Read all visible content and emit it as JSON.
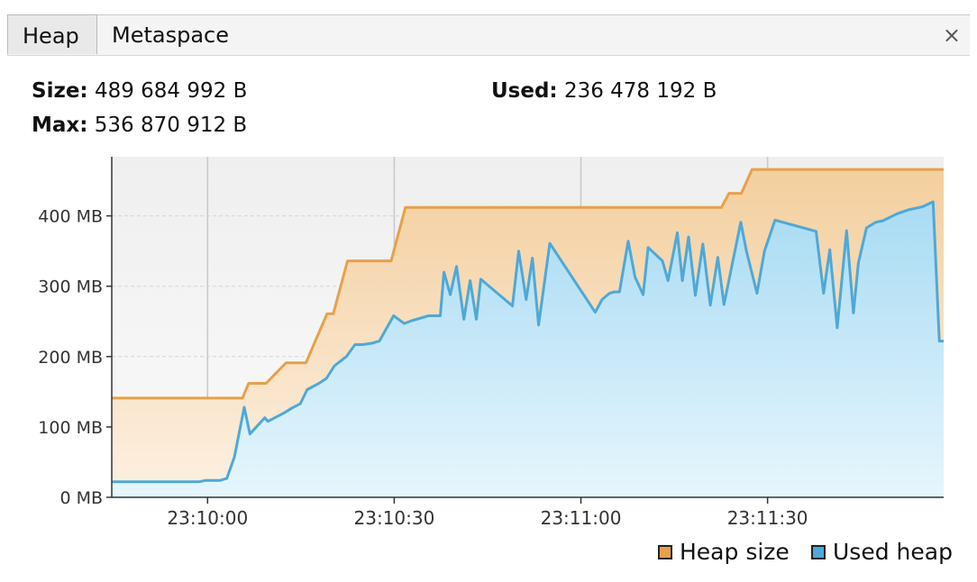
{
  "tabs": [
    {
      "label": "Heap",
      "active": true
    },
    {
      "label": "Metaspace",
      "active": false
    }
  ],
  "close_label": "×",
  "stats": {
    "size_label": "Size:",
    "size_value": "489 684 992 B",
    "used_label": "Used:",
    "used_value": "236 478 192 B",
    "max_label": "Max:",
    "max_value": "536 870 912 B"
  },
  "legend": {
    "heap_size": "Heap size",
    "used_heap": "Used heap"
  },
  "colors": {
    "heap_line": "#e8a04a",
    "used_line": "#4ea8d8"
  },
  "chart_data": {
    "type": "area",
    "x_tick_labels": [
      "23:10:00",
      "23:10:30",
      "23:11:00",
      "23:11:30"
    ],
    "x_ticks": [
      0,
      30,
      60,
      90
    ],
    "y_tick_labels": [
      "0 MB",
      "100 MB",
      "200 MB",
      "300 MB",
      "400 MB"
    ],
    "y_ticks": [
      0,
      100,
      200,
      300,
      400
    ],
    "xlim": [
      -15.4,
      118.3
    ],
    "ylim": [
      0,
      484
    ],
    "grid": true,
    "legend_position": "bottom-right",
    "series": [
      {
        "name": "Heap size",
        "points": [
          [
            -15.4,
            141
          ],
          [
            5.6,
            141
          ],
          [
            6.6,
            162
          ],
          [
            9.4,
            162
          ],
          [
            12.6,
            191
          ],
          [
            15.8,
            191
          ],
          [
            19.2,
            261
          ],
          [
            20.2,
            261
          ],
          [
            22.5,
            336
          ],
          [
            29.5,
            336
          ],
          [
            31.8,
            412
          ],
          [
            82.6,
            412
          ],
          [
            83.8,
            432
          ],
          [
            85.8,
            432
          ],
          [
            87.5,
            466
          ],
          [
            118.3,
            466
          ]
        ]
      },
      {
        "name": "Used heap",
        "points": [
          [
            -15.4,
            22
          ],
          [
            -1.4,
            22
          ],
          [
            -0.4,
            24
          ],
          [
            2.0,
            24
          ],
          [
            3.1,
            27
          ],
          [
            4.3,
            57
          ],
          [
            5.9,
            128
          ],
          [
            6.8,
            90
          ],
          [
            9.2,
            113
          ],
          [
            9.7,
            108
          ],
          [
            12.3,
            120
          ],
          [
            13.6,
            127
          ],
          [
            14.9,
            133
          ],
          [
            16.0,
            153
          ],
          [
            17.9,
            162
          ],
          [
            19.1,
            169
          ],
          [
            20.4,
            187
          ],
          [
            22.3,
            200
          ],
          [
            23.7,
            217
          ],
          [
            24.9,
            217
          ],
          [
            26.4,
            219
          ],
          [
            27.6,
            222
          ],
          [
            29.9,
            258
          ],
          [
            31.6,
            247
          ],
          [
            32.8,
            251
          ],
          [
            35.5,
            258
          ],
          [
            37.4,
            258
          ],
          [
            38.0,
            320
          ],
          [
            39.0,
            288
          ],
          [
            40.0,
            328
          ],
          [
            41.2,
            253
          ],
          [
            42.2,
            308
          ],
          [
            43.2,
            253
          ],
          [
            43.9,
            310
          ],
          [
            49.0,
            272
          ],
          [
            50.0,
            350
          ],
          [
            51.2,
            281
          ],
          [
            52.2,
            340
          ],
          [
            53.2,
            245
          ],
          [
            55.0,
            361
          ],
          [
            62.3,
            263
          ],
          [
            63.4,
            281
          ],
          [
            64.6,
            290
          ],
          [
            65.4,
            292
          ],
          [
            66.2,
            292
          ],
          [
            67.6,
            364
          ],
          [
            68.7,
            313
          ],
          [
            70.0,
            288
          ],
          [
            70.8,
            355
          ],
          [
            73.1,
            336
          ],
          [
            74.0,
            308
          ],
          [
            75.5,
            376
          ],
          [
            76.3,
            308
          ],
          [
            77.3,
            370
          ],
          [
            78.4,
            287
          ],
          [
            79.6,
            360
          ],
          [
            80.8,
            273
          ],
          [
            82.0,
            341
          ],
          [
            83.0,
            274
          ],
          [
            85.7,
            391
          ],
          [
            86.6,
            350
          ],
          [
            88.3,
            290
          ],
          [
            89.5,
            350
          ],
          [
            91.2,
            394
          ],
          [
            97.8,
            378
          ],
          [
            99.0,
            290
          ],
          [
            100.0,
            352
          ],
          [
            101.2,
            241
          ],
          [
            102.7,
            379
          ],
          [
            103.8,
            262
          ],
          [
            104.6,
            333
          ],
          [
            105.9,
            383
          ],
          [
            107.4,
            391
          ],
          [
            108.5,
            393
          ],
          [
            110.8,
            403
          ],
          [
            112.8,
            409
          ],
          [
            114.9,
            413
          ],
          [
            116.6,
            420
          ],
          [
            117.6,
            222
          ],
          [
            118.3,
            222
          ]
        ]
      }
    ]
  }
}
